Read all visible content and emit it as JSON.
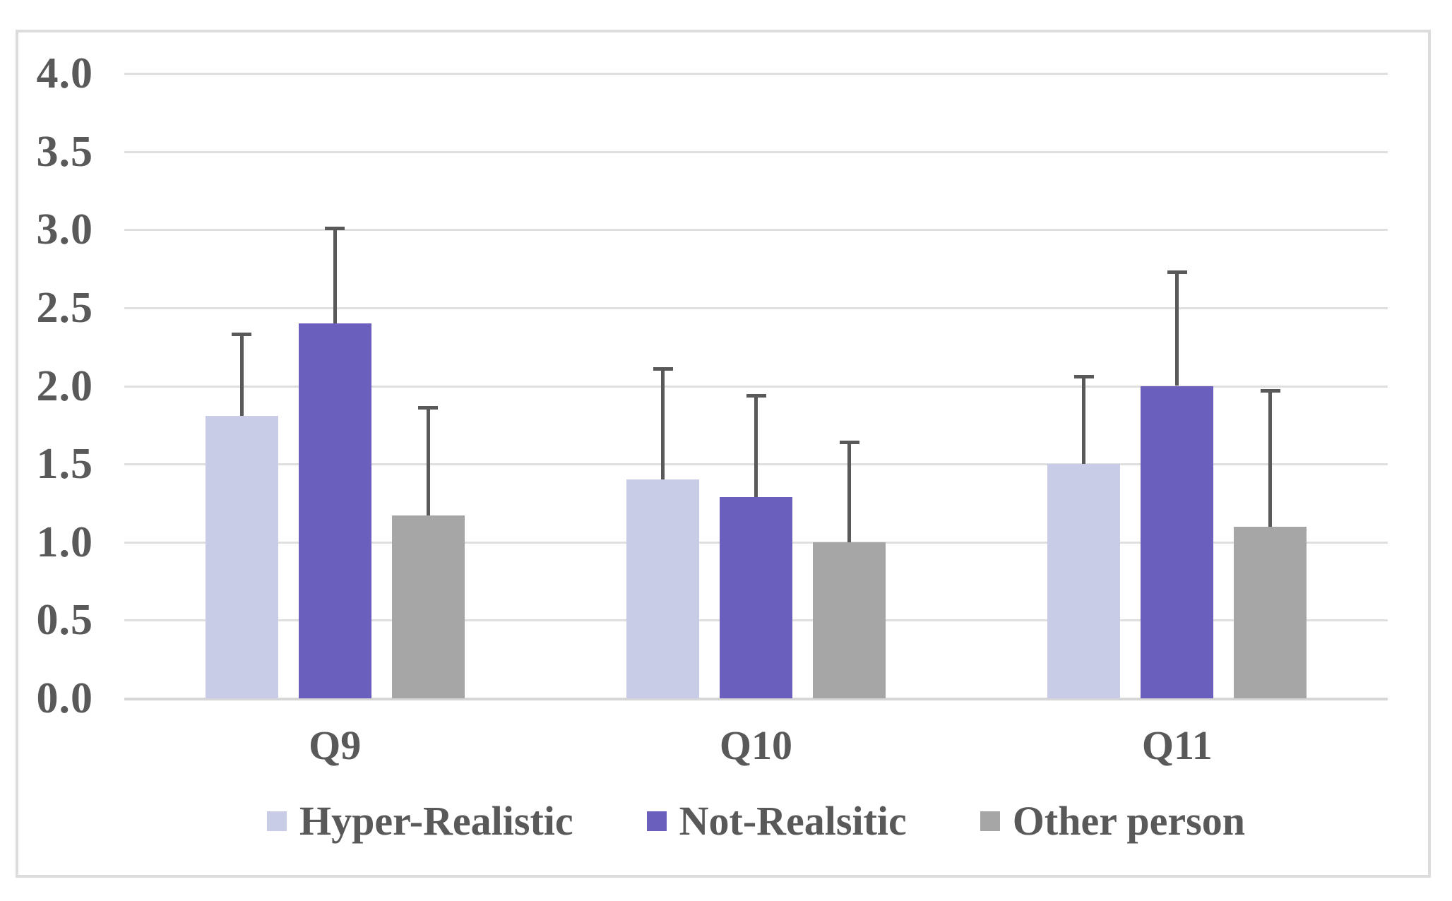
{
  "figure": {
    "background": "#FFFFFF",
    "border_color": "#DCDCDC",
    "text_color": "#595959",
    "gridline_color": "#DFDFDF",
    "error_bar_color": "#595959"
  },
  "chart_data": {
    "type": "bar",
    "title": "",
    "xlabel": "",
    "ylabel": "",
    "categories": [
      "Q9",
      "Q10",
      "Q11"
    ],
    "series": [
      {
        "name": "Hyper-Realistic",
        "color": "#C9CCE6",
        "values": [
          1.81,
          1.4,
          1.5
        ],
        "error_up": [
          0.52,
          0.71,
          0.56
        ]
      },
      {
        "name": "Not-Realsitic",
        "color": "#6B5FBE",
        "values": [
          2.4,
          1.29,
          2.0
        ],
        "error_up": [
          0.61,
          0.65,
          0.73
        ]
      },
      {
        "name": "Other person",
        "color": "#A6A6A6",
        "values": [
          1.17,
          1.0,
          1.1
        ],
        "error_up": [
          0.69,
          0.64,
          0.87
        ]
      }
    ],
    "ylim": [
      0.0,
      4.0
    ],
    "ytick_step": 0.5,
    "ytick_labels": [
      "4.0",
      "3.5",
      "3.0",
      "2.5",
      "2.0",
      "1.5",
      "1.0",
      "0.5",
      "0.0"
    ],
    "grid": true,
    "error_bars": "upper-only",
    "legend_position": "bottom"
  }
}
